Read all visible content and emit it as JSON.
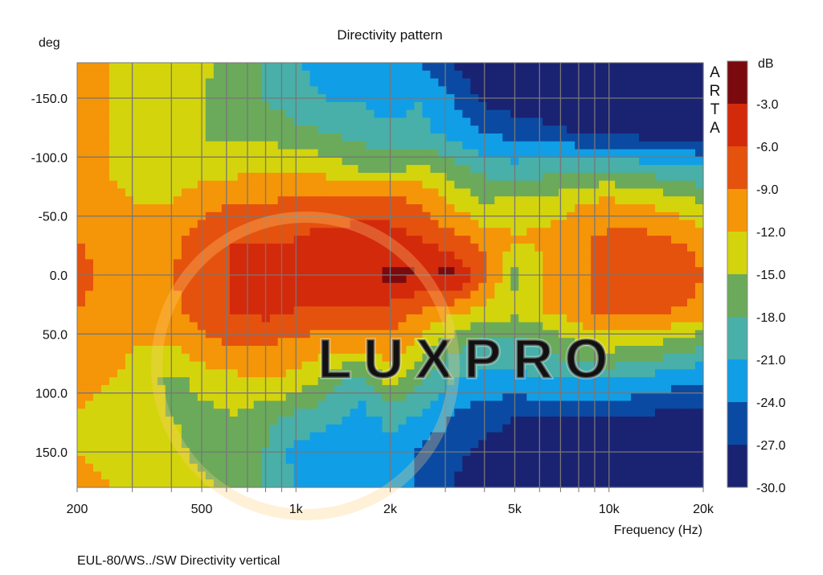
{
  "chart_data": {
    "type": "heatmap",
    "title": "Directivity pattern",
    "ylabel": "deg",
    "xlabel": "Frequency (Hz)",
    "caption": "EUL-80/WS../SW  Directivity vertical",
    "brand_vertical": "ARTA",
    "watermark": "LUXPRO",
    "xscale": "log",
    "xlim": [
      200,
      20000
    ],
    "ylim": [
      -180,
      180
    ],
    "xticks": [
      {
        "v": 200,
        "label": "200"
      },
      {
        "v": 500,
        "label": "500"
      },
      {
        "v": 1000,
        "label": "1k"
      },
      {
        "v": 2000,
        "label": "2k"
      },
      {
        "v": 5000,
        "label": "5k"
      },
      {
        "v": 10000,
        "label": "10k"
      },
      {
        "v": 20000,
        "label": "20k"
      }
    ],
    "yticks": [
      {
        "v": -150,
        "label": "-150.0"
      },
      {
        "v": -100,
        "label": "-100.0"
      },
      {
        "v": -50,
        "label": "-50.0"
      },
      {
        "v": 0,
        "label": "0.0"
      },
      {
        "v": 50,
        "label": "50.0"
      },
      {
        "v": 100,
        "label": "100.0"
      },
      {
        "v": 150,
        "label": "150.0"
      }
    ],
    "colorbar": {
      "unit": "dB",
      "range": [
        -30,
        0
      ],
      "labels": [
        "-3.0",
        "-6.0",
        "-9.0",
        "-12.0",
        "-15.0",
        "-18.0",
        "-21.0",
        "-24.0",
        "-27.0",
        "-30.0"
      ],
      "colors": [
        "#7a0a0e",
        "#d42a0c",
        "#e5520e",
        "#f59508",
        "#d4d40c",
        "#6aaa5a",
        "#48b0a8",
        "#109ee6",
        "#0a4aa2",
        "#1a2272"
      ]
    },
    "frequencies": [
      200,
      250,
      315,
      400,
      500,
      630,
      800,
      1000,
      1250,
      1600,
      2000,
      2500,
      3150,
      4000,
      5000,
      6300,
      8000,
      10000,
      12500,
      16000,
      20000
    ],
    "angles": [
      -180,
      -150,
      -120,
      -90,
      -60,
      -30,
      0,
      30,
      60,
      90,
      120,
      150,
      180
    ],
    "values": [
      [
        -10,
        -12,
        -13,
        -13,
        -14,
        -16,
        -18,
        -21,
        -22,
        -22,
        -23,
        -24,
        -27,
        -29,
        -29,
        -29,
        -29,
        -29,
        -29,
        -29,
        -29
      ],
      [
        -10,
        -12,
        -13,
        -14,
        -15,
        -17,
        -18,
        -20,
        -21,
        -21,
        -23,
        -21,
        -24,
        -28,
        -29,
        -29,
        -29,
        -29,
        -29,
        -29,
        -29
      ],
      [
        -10,
        -12,
        -13,
        -14,
        -15,
        -16,
        -16,
        -17,
        -18,
        -19,
        -20,
        -20,
        -22,
        -24,
        -25,
        -26,
        -27,
        -28,
        -28,
        -28,
        -28
      ],
      [
        -10,
        -12,
        -14,
        -14,
        -13,
        -13,
        -12,
        -12,
        -13,
        -15,
        -16,
        -14,
        -17,
        -19,
        -20,
        -19,
        -18,
        -18,
        -19,
        -20,
        -21
      ],
      [
        -10,
        -11,
        -12,
        -12,
        -10,
        -9,
        -9,
        -8,
        -8,
        -7,
        -7,
        -9,
        -12,
        -15,
        -13,
        -14,
        -12,
        -11,
        -12,
        -13,
        -15
      ],
      [
        -9,
        -10,
        -11,
        -10,
        -7,
        -6,
        -6,
        -6,
        -5,
        -5,
        -5,
        -6,
        -8,
        -10,
        -12,
        -11,
        -10,
        -8,
        -8,
        -9,
        -10
      ],
      [
        -8,
        -10,
        -10,
        -9,
        -7,
        -6,
        -5,
        -5,
        -5,
        -4,
        -2,
        -3,
        -2,
        -8,
        -16,
        -12,
        -10,
        -7,
        -7,
        -7,
        -9
      ],
      [
        -9,
        -10,
        -11,
        -10,
        -7,
        -6,
        -5,
        -6,
        -6,
        -6,
        -7,
        -9,
        -11,
        -13,
        -14,
        -12,
        -10,
        -8,
        -8,
        -9,
        -10
      ],
      [
        -10,
        -11,
        -12,
        -12,
        -10,
        -9,
        -9,
        -10,
        -11,
        -11,
        -10,
        -13,
        -17,
        -19,
        -19,
        -18,
        -15,
        -14,
        -15,
        -16,
        -18
      ],
      [
        -11,
        -12,
        -13,
        -16,
        -14,
        -13,
        -12,
        -13,
        -16,
        -20,
        -14,
        -18,
        -21,
        -22,
        -22,
        -21,
        -21,
        -21,
        -22,
        -23,
        -24
      ],
      [
        -12,
        -13,
        -14,
        -15,
        -16,
        -15,
        -17,
        -19,
        -20,
        -22,
        -20,
        -21,
        -24,
        -26,
        -27,
        -27,
        -27,
        -27,
        -27,
        -28,
        -28
      ],
      [
        -12,
        -13,
        -14,
        -14,
        -16,
        -17,
        -18,
        -22,
        -23,
        -24,
        -22,
        -25,
        -26,
        -28,
        -28,
        -28,
        -29,
        -29,
        -29,
        -29,
        -29
      ],
      [
        -10,
        -12,
        -13,
        -13,
        -14,
        -16,
        -18,
        -21,
        -22,
        -22,
        -23,
        -24,
        -27,
        -29,
        -29,
        -29,
        -29,
        -29,
        -29,
        -29,
        -29
      ]
    ]
  }
}
